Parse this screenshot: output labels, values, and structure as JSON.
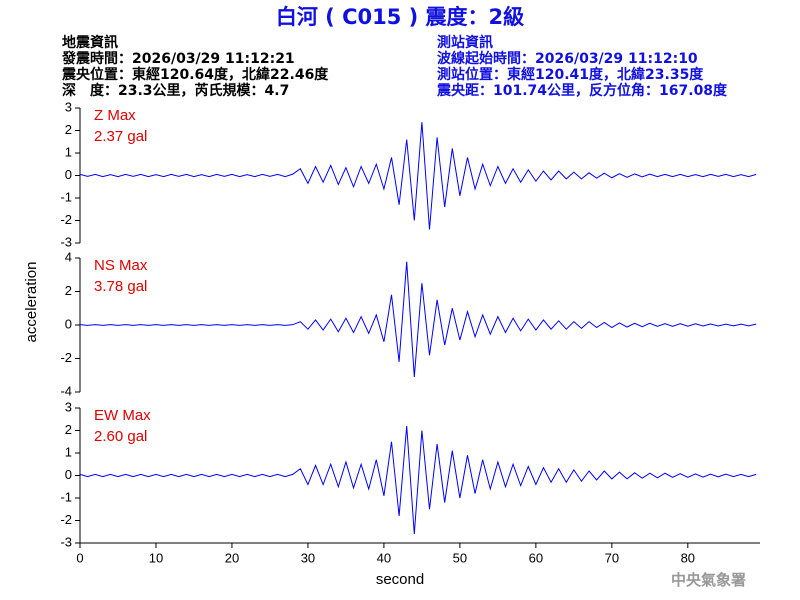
{
  "title": "白河 ( C015 ) 震度：2級",
  "event_info": [
    "地震資訊",
    "發震時間：2026/03/29 11:12:21",
    "震央位置：東經120.64度，北緯22.46度",
    "深　度：23.3公里，芮氏規模：4.7"
  ],
  "station_info": [
    "測站資訊",
    "波線起始時間：2026/03/29 11:12:10",
    "測站位置：東經120.41度，北緯23.35度",
    "震央距：101.74公里，反方位角：167.08度"
  ],
  "y_label": "acceleration",
  "x_label": "second",
  "footer": "中央氣象署",
  "chart_data": [
    {
      "type": "line",
      "name": "Z Max",
      "max_label": "2.37 gal",
      "color": "#0000ff",
      "xlim": [
        0,
        89.5
      ],
      "ylim": [
        -3,
        3
      ],
      "yticks": [
        -3,
        -2,
        -1,
        0,
        1,
        2,
        3
      ],
      "x": [
        0,
        1,
        2,
        3,
        4,
        5,
        6,
        7,
        8,
        9,
        10,
        11,
        12,
        13,
        14,
        15,
        16,
        17,
        18,
        19,
        20,
        21,
        22,
        23,
        24,
        25,
        26,
        27,
        28,
        29,
        30,
        31,
        32,
        33,
        34,
        35,
        36,
        37,
        38,
        39,
        40,
        41,
        42,
        43,
        44,
        45,
        46,
        47,
        48,
        49,
        50,
        51,
        52,
        53,
        54,
        55,
        56,
        57,
        58,
        59,
        60,
        61,
        62,
        63,
        64,
        65,
        66,
        67,
        68,
        69,
        70,
        71,
        72,
        73,
        74,
        75,
        76,
        77,
        78,
        79,
        80,
        81,
        82,
        83,
        84,
        85,
        86,
        87,
        88,
        89
      ],
      "values": [
        0.05,
        -0.04,
        0.05,
        -0.05,
        0.04,
        -0.05,
        0.05,
        -0.04,
        0.05,
        -0.05,
        0.04,
        -0.05,
        0.05,
        -0.04,
        0.05,
        -0.05,
        0.04,
        -0.05,
        0.05,
        -0.04,
        0.05,
        -0.05,
        0.04,
        -0.05,
        0.05,
        -0.04,
        0.05,
        -0.05,
        0.06,
        0.3,
        -0.35,
        0.4,
        -0.3,
        0.45,
        -0.4,
        0.35,
        -0.5,
        0.4,
        -0.35,
        0.5,
        -0.6,
        0.8,
        -1.3,
        1.6,
        -2.0,
        2.37,
        -2.4,
        1.7,
        -1.4,
        1.2,
        -0.9,
        0.8,
        -0.6,
        0.5,
        -0.45,
        0.4,
        -0.35,
        0.3,
        -0.3,
        0.25,
        -0.25,
        0.2,
        -0.2,
        0.2,
        -0.15,
        0.15,
        -0.15,
        0.12,
        -0.12,
        0.1,
        -0.1,
        0.08,
        -0.08,
        0.07,
        -0.06,
        0.06,
        -0.05,
        0.05,
        -0.05,
        0.05,
        -0.05,
        0.04,
        -0.05,
        0.05,
        -0.04,
        0.05,
        -0.05,
        0.04,
        -0.05,
        0.05
      ]
    },
    {
      "type": "line",
      "name": "NS Max",
      "max_label": "3.78 gal",
      "color": "#0000ff",
      "xlim": [
        0,
        89.5
      ],
      "ylim": [
        -4,
        4
      ],
      "yticks": [
        -4,
        -2,
        0,
        2,
        4
      ],
      "x": [
        0,
        1,
        2,
        3,
        4,
        5,
        6,
        7,
        8,
        9,
        10,
        11,
        12,
        13,
        14,
        15,
        16,
        17,
        18,
        19,
        20,
        21,
        22,
        23,
        24,
        25,
        26,
        27,
        28,
        29,
        30,
        31,
        32,
        33,
        34,
        35,
        36,
        37,
        38,
        39,
        40,
        41,
        42,
        43,
        44,
        45,
        46,
        47,
        48,
        49,
        50,
        51,
        52,
        53,
        54,
        55,
        56,
        57,
        58,
        59,
        60,
        61,
        62,
        63,
        64,
        65,
        66,
        67,
        68,
        69,
        70,
        71,
        72,
        73,
        74,
        75,
        76,
        77,
        78,
        79,
        80,
        81,
        82,
        83,
        84,
        85,
        86,
        87,
        88,
        89
      ],
      "values": [
        0.02,
        -0.02,
        0.02,
        -0.02,
        0.02,
        -0.02,
        0.02,
        -0.02,
        0.02,
        -0.02,
        0.02,
        -0.02,
        0.02,
        -0.02,
        0.02,
        -0.02,
        0.02,
        -0.02,
        0.02,
        -0.02,
        0.02,
        -0.02,
        0.02,
        -0.02,
        0.02,
        -0.02,
        0.02,
        -0.02,
        0.02,
        0.2,
        -0.25,
        0.3,
        -0.3,
        0.35,
        -0.4,
        0.4,
        -0.45,
        0.5,
        -0.5,
        0.6,
        -1.0,
        1.8,
        -2.2,
        3.78,
        -3.1,
        2.5,
        -1.8,
        1.5,
        -1.2,
        1.0,
        -0.9,
        0.8,
        -0.7,
        0.6,
        -0.55,
        0.5,
        -0.45,
        0.4,
        -0.35,
        0.35,
        -0.3,
        0.3,
        -0.25,
        0.25,
        -0.25,
        0.2,
        -0.2,
        0.2,
        -0.15,
        0.15,
        -0.15,
        0.12,
        -0.12,
        0.1,
        -0.1,
        0.1,
        -0.08,
        0.08,
        -0.08,
        0.08,
        -0.07,
        0.07,
        -0.06,
        0.06,
        -0.06,
        0.05,
        -0.05,
        0.05,
        -0.05,
        0.05
      ]
    },
    {
      "type": "line",
      "name": "EW Max",
      "max_label": "2.60 gal",
      "color": "#0000ff",
      "xlim": [
        0,
        89.5
      ],
      "ylim": [
        -3,
        3
      ],
      "yticks": [
        -3,
        -2,
        -1,
        0,
        1,
        2,
        3
      ],
      "xticks": [
        0,
        10,
        20,
        30,
        40,
        50,
        60,
        70,
        80
      ],
      "x": [
        0,
        1,
        2,
        3,
        4,
        5,
        6,
        7,
        8,
        9,
        10,
        11,
        12,
        13,
        14,
        15,
        16,
        17,
        18,
        19,
        20,
        21,
        22,
        23,
        24,
        25,
        26,
        27,
        28,
        29,
        30,
        31,
        32,
        33,
        34,
        35,
        36,
        37,
        38,
        39,
        40,
        41,
        42,
        43,
        44,
        45,
        46,
        47,
        48,
        49,
        50,
        51,
        52,
        53,
        54,
        55,
        56,
        57,
        58,
        59,
        60,
        61,
        62,
        63,
        64,
        65,
        66,
        67,
        68,
        69,
        70,
        71,
        72,
        73,
        74,
        75,
        76,
        77,
        78,
        79,
        80,
        81,
        82,
        83,
        84,
        85,
        86,
        87,
        88,
        89
      ],
      "values": [
        0.05,
        -0.05,
        0.05,
        -0.05,
        0.05,
        -0.05,
        0.05,
        -0.05,
        0.05,
        -0.05,
        0.05,
        -0.05,
        0.05,
        -0.05,
        0.05,
        -0.05,
        0.05,
        -0.05,
        0.05,
        -0.05,
        0.05,
        -0.05,
        0.05,
        -0.05,
        0.05,
        -0.05,
        0.05,
        -0.05,
        0.05,
        0.3,
        -0.4,
        0.45,
        -0.4,
        0.5,
        -0.5,
        0.6,
        -0.55,
        0.5,
        -0.6,
        0.7,
        -0.9,
        1.5,
        -1.8,
        2.2,
        -2.6,
        2.0,
        -1.5,
        1.4,
        -1.2,
        1.1,
        -1.0,
        0.9,
        -0.8,
        0.7,
        -0.6,
        0.6,
        -0.5,
        0.5,
        -0.45,
        0.4,
        -0.4,
        0.35,
        -0.3,
        0.3,
        -0.3,
        0.25,
        -0.25,
        0.2,
        -0.2,
        0.2,
        -0.15,
        0.15,
        -0.15,
        0.12,
        -0.12,
        0.1,
        -0.1,
        0.1,
        -0.08,
        0.08,
        -0.08,
        0.07,
        -0.07,
        0.06,
        -0.06,
        0.06,
        -0.05,
        0.05,
        -0.05,
        0.05
      ]
    }
  ]
}
